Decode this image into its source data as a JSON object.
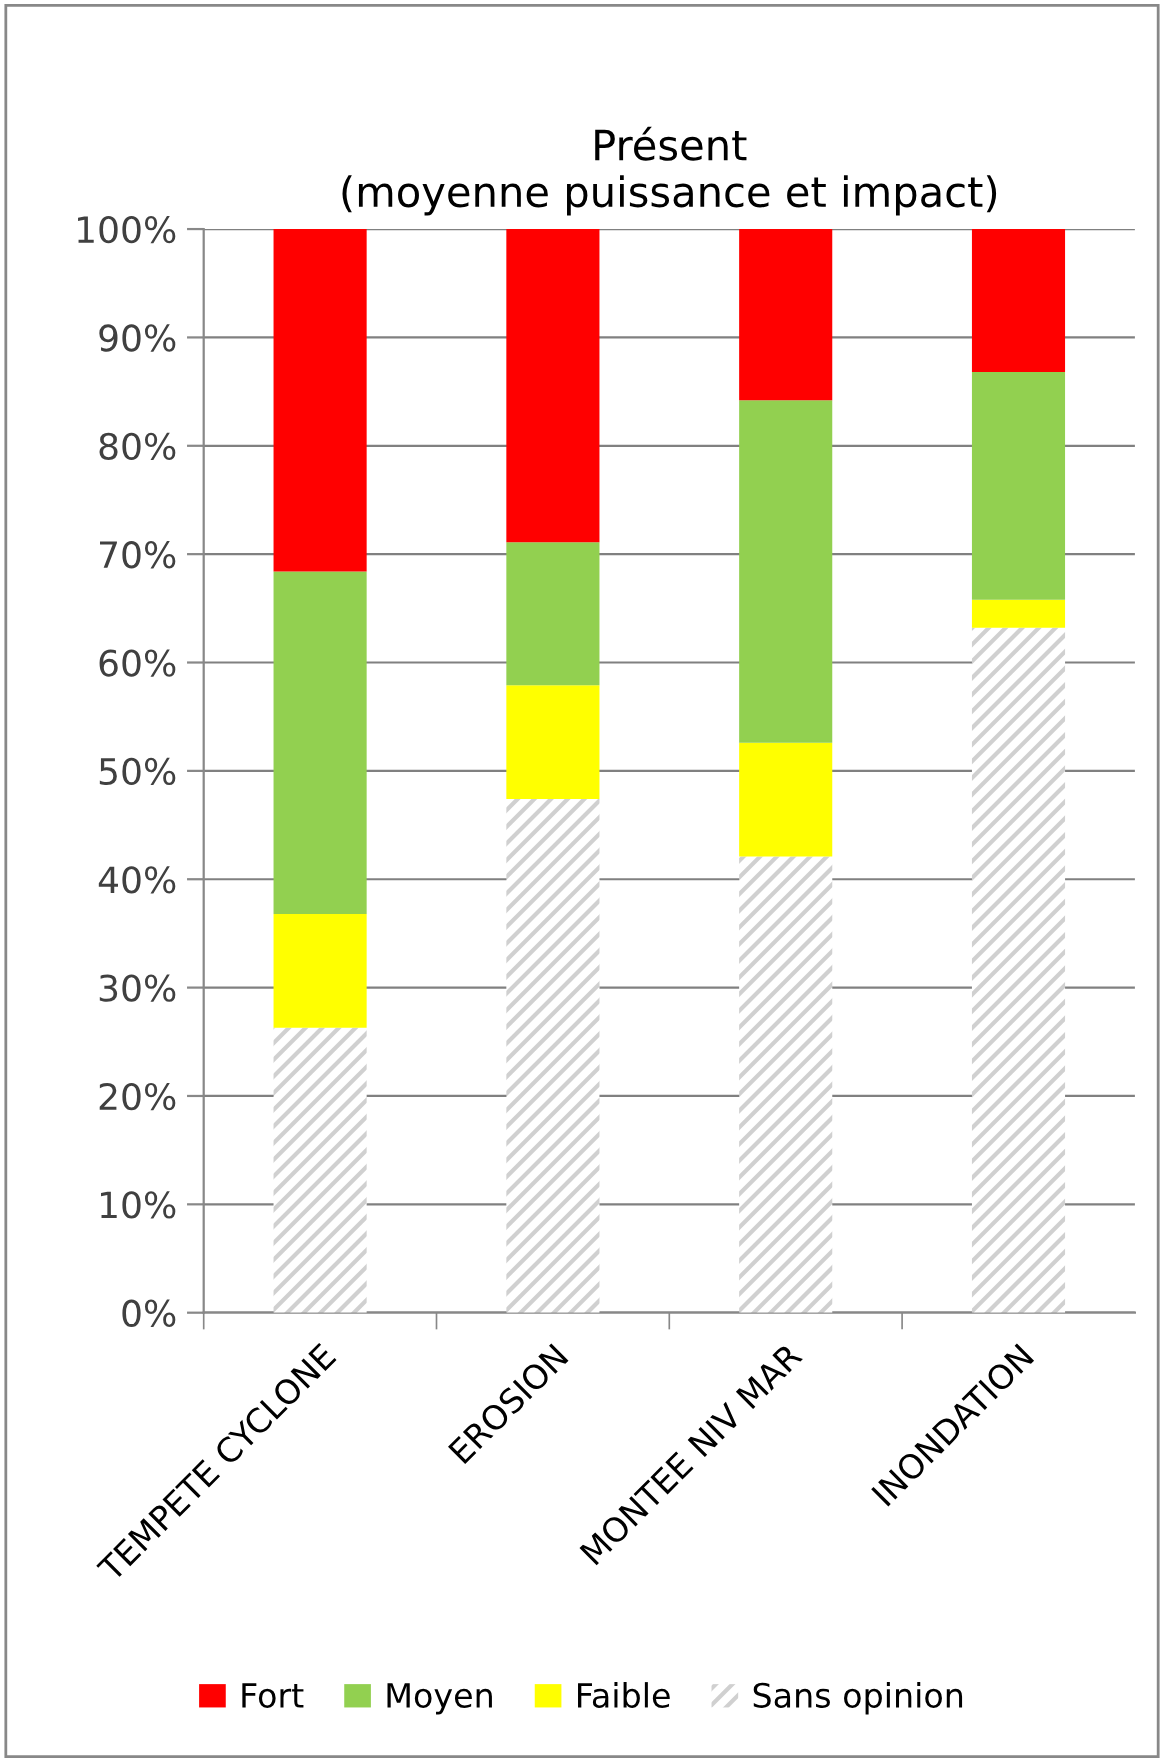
{
  "chart_data": {
    "type": "bar",
    "stacked": true,
    "title": "Présent\n(moyenne puissance et impact)",
    "categories": [
      "TEMPETE CYCLONE",
      "EROSION",
      "MONTEE NIV MAR",
      "INONDATION"
    ],
    "series": [
      {
        "name": "Sans opinion",
        "color": "#d0d0d0",
        "values": [
          26.3,
          47.4,
          42.1,
          63.2
        ]
      },
      {
        "name": "Faible",
        "color": "#ffff00",
        "values": [
          10.5,
          10.5,
          10.5,
          2.6
        ]
      },
      {
        "name": "Moyen",
        "color": "#92d050",
        "values": [
          31.6,
          13.2,
          31.6,
          21.0
        ]
      },
      {
        "name": "Fort",
        "color": "#ff0000",
        "values": [
          31.6,
          28.9,
          15.8,
          13.2
        ]
      }
    ],
    "ylim": [
      0,
      100
    ],
    "yticks": [
      {
        "value": 0,
        "label": "0%"
      },
      {
        "value": 10,
        "label": "10%"
      },
      {
        "value": 20,
        "label": "20%"
      },
      {
        "value": 30,
        "label": "30%"
      },
      {
        "value": 40,
        "label": "40%"
      },
      {
        "value": 50,
        "label": "50%"
      },
      {
        "value": 60,
        "label": "60%"
      },
      {
        "value": 70,
        "label": "70%"
      },
      {
        "value": 80,
        "label": "80%"
      },
      {
        "value": 90,
        "label": "90%"
      },
      {
        "value": 100,
        "label": "100%"
      }
    ],
    "grid": "y",
    "legend": "bottom"
  }
}
